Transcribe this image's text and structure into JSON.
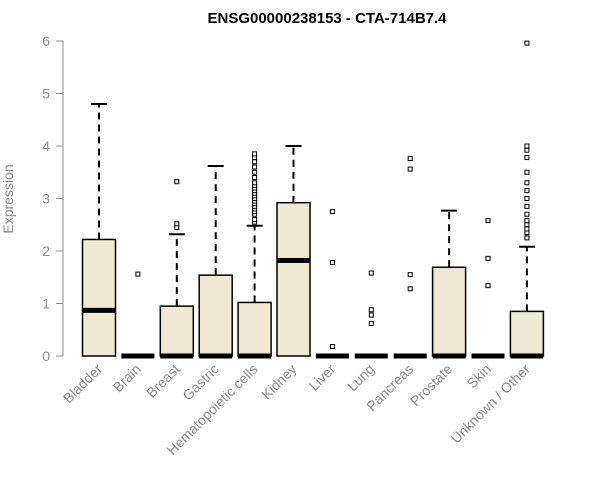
{
  "chart_data": {
    "type": "boxplot",
    "title": "ENSG00000238153 - CTA-714B7.4",
    "ylabel": "Expression",
    "ylim": [
      0,
      6
    ],
    "yticks": [
      0,
      1,
      2,
      3,
      4,
      5,
      6
    ],
    "grid": false,
    "colors": {
      "box_fill": "#efe8d2",
      "stroke": "#000000",
      "axis": "#8c8c8c"
    },
    "categories": [
      "Bladder",
      "Brain",
      "Breast",
      "Gastric",
      "Hematopoietic cells",
      "Kidney",
      "Liver",
      "Lung",
      "Pancreas",
      "Prostate",
      "Skin",
      "Unknown / Other"
    ],
    "boxes": [
      {
        "q1": 0,
        "median": 0.87,
        "q3": 2.22,
        "whisker_low": 0,
        "whisker_high": 4.8,
        "outliers": []
      },
      {
        "q1": 0,
        "median": 0,
        "q3": 0,
        "whisker_low": 0,
        "whisker_high": 0,
        "outliers": [
          1.56
        ]
      },
      {
        "q1": 0,
        "median": 0,
        "q3": 0.95,
        "whisker_low": 0,
        "whisker_high": 2.32,
        "outliers": [
          2.45,
          2.52,
          3.32
        ]
      },
      {
        "q1": 0,
        "median": 0,
        "q3": 1.54,
        "whisker_low": 0,
        "whisker_high": 3.62,
        "outliers": []
      },
      {
        "q1": 0,
        "median": 0,
        "q3": 1.02,
        "whisker_low": 0,
        "whisker_high": 2.48,
        "outliers": [
          2.55,
          2.6,
          2.7,
          2.75,
          2.8,
          2.85,
          2.9,
          2.95,
          3.0,
          3.05,
          3.1,
          3.15,
          3.2,
          3.25,
          3.3,
          3.4,
          3.5,
          3.6,
          3.7,
          3.78,
          3.85
        ]
      },
      {
        "q1": 0,
        "median": 1.82,
        "q3": 2.92,
        "whisker_low": 0,
        "whisker_high": 4.0,
        "outliers": []
      },
      {
        "q1": 0,
        "median": 0,
        "q3": 0,
        "whisker_low": 0,
        "whisker_high": 0,
        "outliers": [
          0.18,
          1.78,
          2.75
        ]
      },
      {
        "q1": 0,
        "median": 0,
        "q3": 0,
        "whisker_low": 0,
        "whisker_high": 0,
        "outliers": [
          0.62,
          0.78,
          0.88,
          1.58
        ]
      },
      {
        "q1": 0,
        "median": 0,
        "q3": 0,
        "whisker_low": 0,
        "whisker_high": 0,
        "outliers": [
          1.28,
          1.55,
          3.56,
          3.76
        ]
      },
      {
        "q1": 0,
        "median": 0,
        "q3": 1.69,
        "whisker_low": 0,
        "whisker_high": 2.77,
        "outliers": []
      },
      {
        "q1": 0,
        "median": 0,
        "q3": 0,
        "whisker_low": 0,
        "whisker_high": 0,
        "outliers": [
          1.34,
          1.86,
          2.58
        ]
      },
      {
        "q1": 0,
        "median": 0,
        "q3": 0.85,
        "whisker_low": 0,
        "whisker_high": 2.08,
        "outliers": [
          2.25,
          2.35,
          2.42,
          2.5,
          2.58,
          2.7,
          2.85,
          3.0,
          3.15,
          3.3,
          3.5,
          3.78,
          3.92,
          4.0,
          5.96
        ]
      }
    ]
  }
}
